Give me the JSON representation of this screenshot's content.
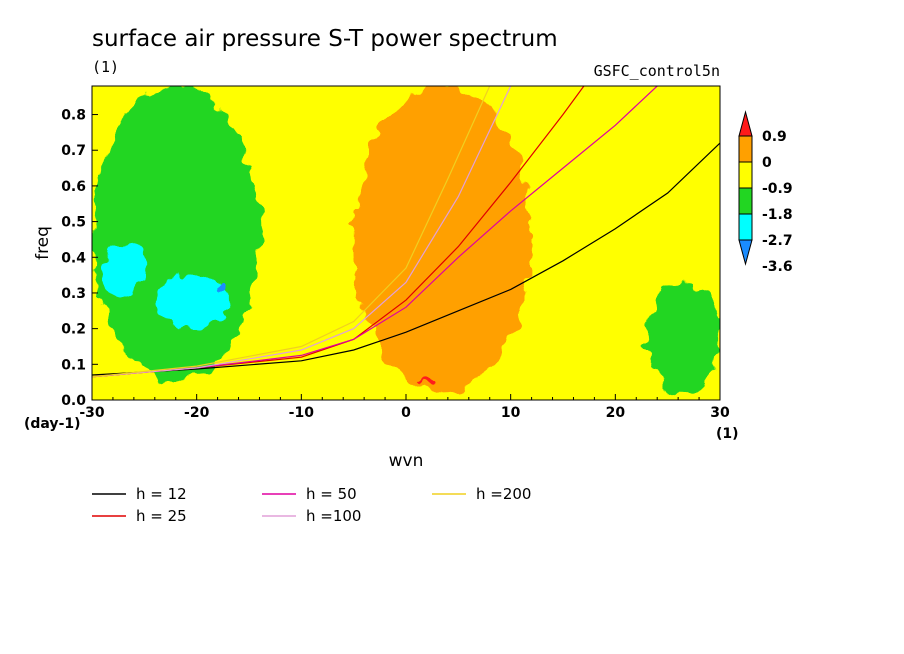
{
  "chart_data": {
    "type": "heatmap",
    "title": "surface air pressure S-T power spectrum",
    "subtitle": "(1)",
    "model_label": "GSFC_control5n",
    "xlabel": "wvn",
    "ylabel": "freq",
    "x_unit": "(1)",
    "y_unit": "(day-1)",
    "xlim": [
      -30,
      30
    ],
    "ylim": [
      0,
      0.88
    ],
    "x_ticks": [
      "-30",
      "-20",
      "-10",
      "0",
      "10",
      "20",
      "30"
    ],
    "x_tick_values": [
      -30,
      -20,
      -10,
      0,
      10,
      20,
      30
    ],
    "y_ticks": [
      "0.0",
      "0.1",
      "0.2",
      "0.3",
      "0.4",
      "0.5",
      "0.6",
      "0.7",
      "0.8"
    ],
    "y_tick_values": [
      0,
      0.1,
      0.2,
      0.3,
      0.4,
      0.5,
      0.6,
      0.7,
      0.8
    ],
    "colorbar": {
      "labels": [
        "0.9",
        "0",
        "-0.9",
        "-1.8",
        "-2.7",
        "-3.6"
      ],
      "colors": [
        "#ff1a1a",
        "#ffa000",
        "#ffff00",
        "#22d622",
        "#00ffff",
        "#1a8cff"
      ]
    },
    "regions": [
      {
        "level": "-0.9",
        "color": "#22d622",
        "x": [
          -30,
          -14
        ],
        "y": [
          0.05,
          0.88
        ]
      },
      {
        "level": "-1.8",
        "color": "#00ffff",
        "x": [
          -29,
          -25
        ],
        "y": [
          0.3,
          0.44
        ]
      },
      {
        "level": "-1.8",
        "color": "#00ffff",
        "x": [
          -24,
          -17
        ],
        "y": [
          0.2,
          0.35
        ]
      },
      {
        "level": "-3.6",
        "color": "#1a8cff",
        "x": [
          -18,
          -17
        ],
        "y": [
          0.3,
          0.33
        ]
      },
      {
        "level": "-0.9",
        "color": "#22d622",
        "x": [
          23,
          30
        ],
        "y": [
          0.02,
          0.33
        ]
      },
      {
        "level": "0",
        "color": "#ffa000",
        "x": [
          -5,
          12
        ],
        "y": [
          0.02,
          0.88
        ]
      },
      {
        "level": "0.9",
        "color": "#ff1a1a",
        "x": [
          1,
          3
        ],
        "y": [
          0.04,
          0.06
        ]
      }
    ],
    "series": [
      {
        "name": "h = 12",
        "color": "#000000",
        "equiv_depth_m": 12,
        "x": [
          -30,
          -20,
          -10,
          -5,
          0,
          5,
          10,
          15,
          20,
          25,
          30
        ],
        "y": [
          0.07,
          0.087,
          0.11,
          0.14,
          0.19,
          0.25,
          0.31,
          0.39,
          0.48,
          0.58,
          0.72
        ]
      },
      {
        "name": "h = 25",
        "color": "#e00000",
        "equiv_depth_m": 25,
        "x": [
          -30,
          -20,
          -10,
          -5,
          0,
          5,
          10,
          15,
          17
        ],
        "y": [
          0.065,
          0.09,
          0.12,
          0.17,
          0.28,
          0.43,
          0.61,
          0.8,
          0.88
        ]
      },
      {
        "name": "h = 50",
        "color": "#e000a0",
        "equiv_depth_m": 50,
        "x": [
          -30,
          -20,
          -10,
          -5,
          0,
          5,
          10,
          15,
          20,
          24
        ],
        "y": [
          0.065,
          0.09,
          0.125,
          0.17,
          0.26,
          0.4,
          0.53,
          0.65,
          0.77,
          0.88
        ]
      },
      {
        "name": "h =100",
        "color": "#e2a0d8",
        "equiv_depth_m": 100,
        "x": [
          -30,
          -20,
          -10,
          -5,
          0,
          5,
          10
        ],
        "y": [
          0.065,
          0.09,
          0.14,
          0.2,
          0.33,
          0.57,
          0.88
        ]
      },
      {
        "name": "h =200",
        "color": "#f0d020",
        "equiv_depth_m": 200,
        "x": [
          -30,
          -20,
          -10,
          -5,
          0,
          4,
          8
        ],
        "y": [
          0.065,
          0.095,
          0.15,
          0.22,
          0.37,
          0.62,
          0.88
        ]
      }
    ]
  }
}
